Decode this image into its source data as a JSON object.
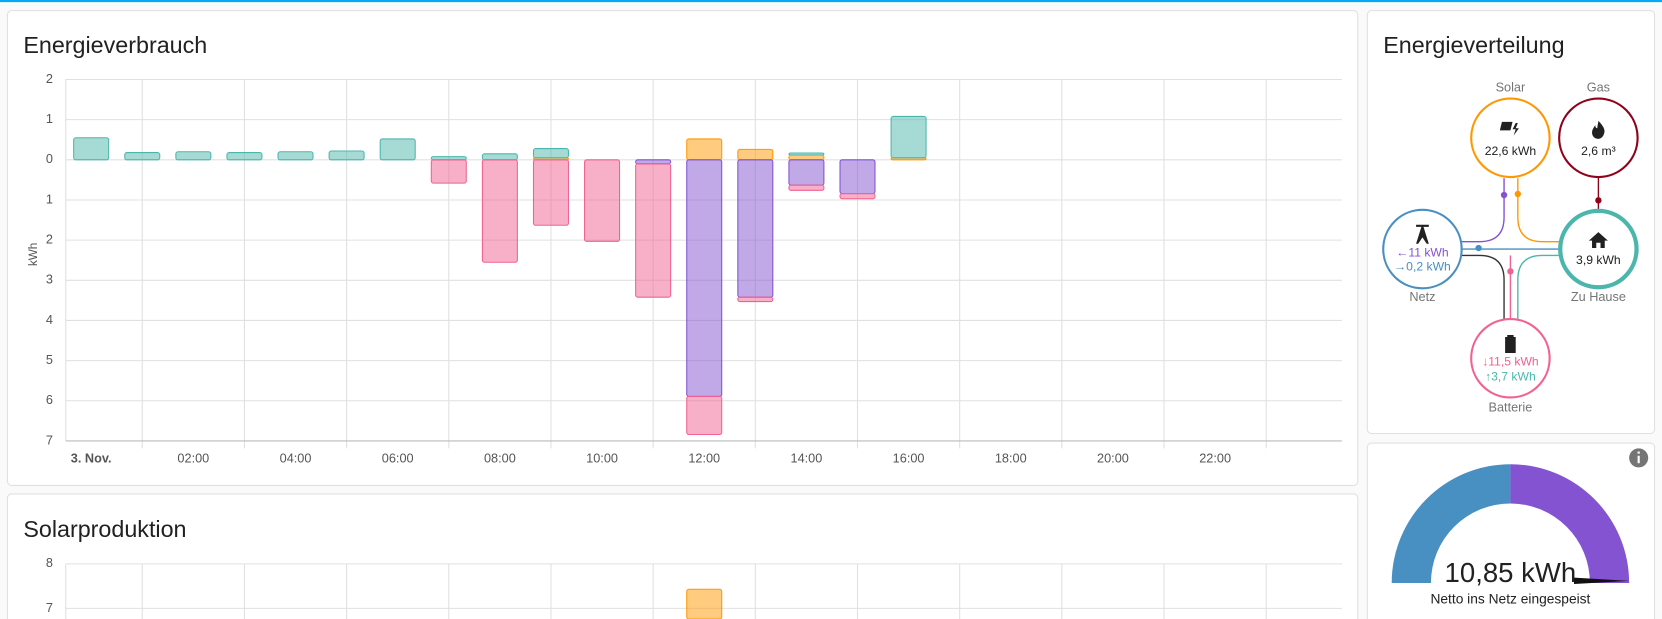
{
  "chart_data": [
    {
      "type": "bar",
      "stacked": true,
      "title": "Energieverbrauch",
      "y_label": "kWh",
      "categories": [
        "3. Nov.",
        null,
        "02:00",
        null,
        "04:00",
        null,
        "06:00",
        null,
        "08:00",
        null,
        "10:00",
        null,
        "12:00",
        null,
        "14:00",
        null,
        "16:00",
        null,
        "18:00",
        null,
        "20:00",
        null,
        "22:00",
        null
      ],
      "series": [
        {
          "color": "#ff9800",
          "values": [
            null,
            null,
            null,
            null,
            null,
            null,
            null,
            null,
            null,
            0.05,
            null,
            null,
            0.52,
            0.26,
            0.12,
            null,
            0.05,
            null,
            null,
            null,
            null,
            null,
            null,
            null
          ]
        },
        {
          "color": "#4db6ac",
          "values": [
            0.55,
            0.18,
            0.2,
            0.18,
            0.2,
            0.22,
            0.52,
            0.08,
            0.15,
            0.23,
            null,
            null,
            null,
            null,
            0.05,
            null,
            1.03,
            null,
            null,
            null,
            null,
            null,
            null,
            null
          ]
        },
        {
          "color": "#8353d1",
          "values": [
            null,
            null,
            null,
            null,
            null,
            null,
            null,
            null,
            null,
            null,
            null,
            -0.1,
            -5.89,
            -3.42,
            -0.63,
            -0.84,
            null,
            null,
            null,
            null,
            null,
            null,
            null,
            null
          ]
        },
        {
          "color": "#f06292",
          "values": [
            null,
            null,
            null,
            null,
            null,
            null,
            null,
            -0.58,
            -2.55,
            -1.63,
            -2.03,
            -3.32,
            -0.95,
            -0.11,
            -0.13,
            -0.13,
            null,
            null,
            null,
            null,
            null,
            null,
            null,
            null
          ]
        }
      ],
      "ylim": [
        -7,
        2
      ],
      "yticks": [
        2,
        1,
        0,
        {
          "value": -1,
          "label": "1"
        },
        {
          "value": -2,
          "label": "2"
        },
        {
          "value": -3,
          "label": "3"
        },
        {
          "value": -4,
          "label": "4"
        },
        {
          "value": -5,
          "label": "5"
        },
        {
          "value": -6,
          "label": "6"
        },
        {
          "value": -7,
          "label": "7"
        }
      ],
      "grid": true
    },
    {
      "type": "bar",
      "title": "Solarproduktion",
      "color": "#ff9800",
      "values": [
        null,
        null,
        null,
        null,
        null,
        null,
        null,
        null,
        null,
        null,
        null,
        null,
        7.43,
        null,
        null,
        null,
        null,
        null,
        null,
        null,
        null,
        null,
        null,
        null
      ],
      "ylim": [
        0,
        8
      ],
      "yticks": [
        8,
        7
      ],
      "grid": true
    }
  ],
  "distribution": {
    "title": "Energieverteilung",
    "solar": {
      "label": "Solar",
      "value": "22,6 kWh"
    },
    "gas": {
      "label": "Gas",
      "value": "2,6 m³"
    },
    "grid": {
      "label": "Netz",
      "in": "←11 kWh",
      "out": "→0,2 kWh"
    },
    "home": {
      "label": "Zu Hause",
      "value": "3,9 kWh"
    },
    "battery": {
      "label": "Batterie",
      "in": "↓11,5 kWh",
      "out": "↑3,7 kWh"
    }
  },
  "gauge": {
    "value": "10,85 kWh",
    "name": "Netto ins Netz eingespeist"
  }
}
